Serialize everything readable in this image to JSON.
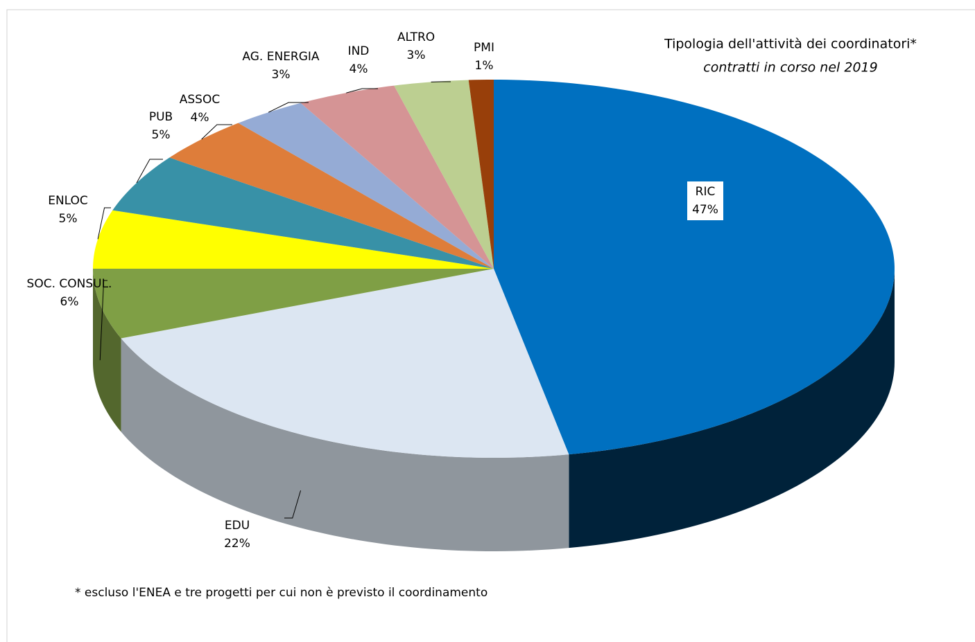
{
  "chart_data": {
    "type": "pie3d",
    "title": "Tipologia dell'attività  dei coordinatori*",
    "subtitle": "contratti in corso nel 2019",
    "note": "* escluso l'ENEA e tre progetti per cui non è previsto il coordinamento",
    "categories": [
      "RIC",
      "EDU",
      "SOC. CONSUL.",
      "ENLOC",
      "PUB",
      "ASSOC",
      "AG. ENERGIA",
      "IND",
      "ALTRO",
      "PMI"
    ],
    "values": [
      47,
      22,
      6,
      5,
      5,
      4,
      3,
      4,
      3,
      1
    ],
    "value_labels": [
      "47%",
      "22%",
      "6%",
      "5%",
      "5%",
      "4%",
      "3%",
      "4%",
      "3%",
      "1%"
    ],
    "colors": [
      "#0070c0",
      "#dce6f2",
      "#7f9f45",
      "#ffff00",
      "#3891a7",
      "#de7d3a",
      "#95abd5",
      "#d59495",
      "#bccf91",
      "#983f0a"
    ]
  }
}
